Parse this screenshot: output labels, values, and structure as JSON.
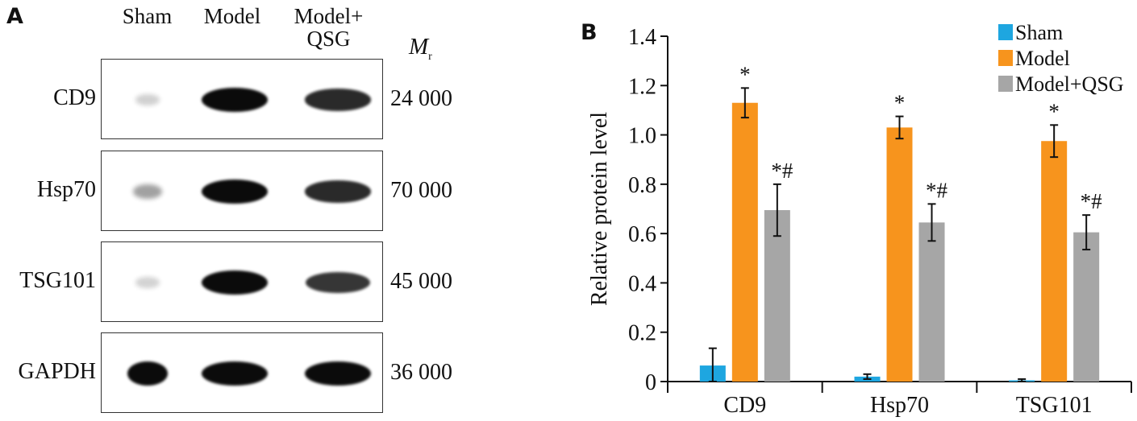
{
  "panel_a": {
    "letter": "A",
    "lanes": [
      "Sham",
      "Model",
      "Model+\nQSG"
    ],
    "mr_symbol": "M",
    "mr_sub": "r",
    "blots": [
      {
        "protein": "CD9",
        "mw": "24 000",
        "intensities": [
          0.08,
          1.0,
          0.85
        ]
      },
      {
        "protein": "Hsp70",
        "mw": "70 000",
        "intensities": [
          0.3,
          1.0,
          0.85
        ]
      },
      {
        "protein": "TSG101",
        "mw": "45 000",
        "intensities": [
          0.07,
          1.0,
          0.8
        ]
      },
      {
        "protein": "GAPDH",
        "mw": "36 000",
        "intensities": [
          1.0,
          1.0,
          1.0
        ]
      }
    ]
  },
  "panel_b": {
    "letter": "B",
    "colors": {
      "Sham": "#1ea6e0",
      "Model": "#f7941d",
      "Model+QSG": "#a6a6a6"
    }
  },
  "chart_data": {
    "type": "bar",
    "title": "",
    "xlabel": "",
    "ylabel": "Relative protein level",
    "ylim": [
      0,
      1.4
    ],
    "yticks": [
      "0",
      "0.2",
      "0.4",
      "0.6",
      "0.8",
      "1.0",
      "1.2",
      "1.4"
    ],
    "categories": [
      "CD9",
      "Hsp70",
      "TSG101"
    ],
    "legend_position": "top-right",
    "series": [
      {
        "name": "Sham",
        "values": [
          0.065,
          0.02,
          0.005
        ],
        "errors": [
          0.07,
          0.01,
          0.005
        ],
        "marks": [
          "",
          "",
          ""
        ]
      },
      {
        "name": "Model",
        "values": [
          1.13,
          1.03,
          0.975
        ],
        "errors": [
          0.06,
          0.045,
          0.065
        ],
        "marks": [
          "*",
          "*",
          "*"
        ]
      },
      {
        "name": "Model+QSG",
        "values": [
          0.695,
          0.645,
          0.605
        ],
        "errors": [
          0.105,
          0.075,
          0.07
        ],
        "marks": [
          "*#",
          "*#",
          "*#"
        ]
      }
    ]
  }
}
